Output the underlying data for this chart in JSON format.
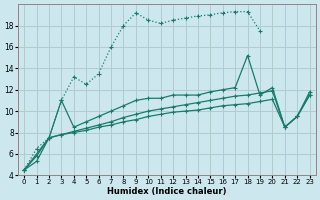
{
  "xlabel": "Humidex (Indice chaleur)",
  "bg_color": "#cce8ee",
  "grid_color": "#b0cccc",
  "line_color": "#1a7a6a",
  "xlim": [
    -0.5,
    23.5
  ],
  "ylim": [
    4,
    20
  ],
  "yticks": [
    4,
    6,
    8,
    10,
    12,
    14,
    16,
    18
  ],
  "xticks": [
    0,
    1,
    2,
    3,
    4,
    5,
    6,
    7,
    8,
    9,
    10,
    11,
    12,
    13,
    14,
    15,
    16,
    17,
    18,
    19,
    20,
    21,
    22,
    23
  ],
  "line1_x": [
    0,
    1,
    2,
    3,
    4,
    5,
    6,
    7,
    8,
    9,
    10,
    11,
    12,
    13,
    14,
    15,
    16,
    17,
    18,
    19
  ],
  "line1_y": [
    4.5,
    6.5,
    7.5,
    11.0,
    13.2,
    12.5,
    13.5,
    16.0,
    18.0,
    19.2,
    18.5,
    18.2,
    18.5,
    18.7,
    18.9,
    19.0,
    19.2,
    19.3,
    19.3,
    17.5
  ],
  "line2_x": [
    0,
    2,
    3,
    4,
    5,
    6,
    7,
    8,
    9,
    10,
    11,
    12,
    13,
    14,
    15,
    16,
    17,
    18,
    19,
    20,
    21,
    22,
    23
  ],
  "line2_y": [
    4.5,
    7.5,
    11.0,
    8.5,
    9.0,
    9.5,
    10.0,
    10.5,
    11.0,
    11.2,
    11.2,
    11.5,
    11.5,
    11.5,
    11.8,
    12.0,
    12.2,
    15.2,
    11.5,
    12.2,
    8.5,
    9.5,
    11.5
  ],
  "line3_x": [
    0,
    1,
    2,
    3,
    4,
    5,
    6,
    7,
    8,
    9,
    10,
    11,
    12,
    13,
    14,
    15,
    16,
    17,
    18,
    19,
    20,
    21,
    22,
    23
  ],
  "line3_y": [
    4.5,
    5.8,
    7.5,
    7.8,
    8.1,
    8.4,
    8.7,
    9.0,
    9.4,
    9.7,
    10.0,
    10.2,
    10.4,
    10.6,
    10.8,
    11.0,
    11.2,
    11.4,
    11.5,
    11.7,
    11.9,
    8.5,
    9.5,
    11.8
  ],
  "line4_x": [
    0,
    1,
    2,
    3,
    4,
    5,
    6,
    7,
    8,
    9,
    10,
    11,
    12,
    13,
    14,
    15,
    16,
    17,
    18,
    19,
    20,
    21,
    22,
    23
  ],
  "line4_y": [
    4.5,
    5.3,
    7.5,
    7.8,
    8.0,
    8.2,
    8.5,
    8.7,
    9.0,
    9.2,
    9.5,
    9.7,
    9.9,
    10.0,
    10.1,
    10.3,
    10.5,
    10.6,
    10.7,
    10.9,
    11.1,
    8.5,
    9.5,
    11.5
  ]
}
